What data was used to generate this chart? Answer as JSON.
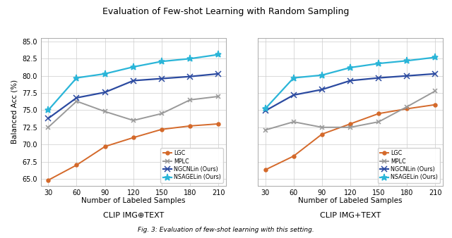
{
  "title": "Evaluation of Few-shot Learning with Random Sampling",
  "x": [
    30,
    60,
    90,
    120,
    150,
    180,
    210
  ],
  "subplot1": {
    "xlabel": "Number of Labeled Samples\nCLIP IMG⊕TEXT",
    "LGC": [
      64.8,
      67.0,
      69.7,
      71.0,
      72.2,
      72.7,
      73.0
    ],
    "MPLC": [
      72.5,
      76.3,
      74.8,
      73.5,
      74.5,
      76.5,
      77.0
    ],
    "NGCNLin": [
      73.8,
      76.8,
      77.6,
      79.3,
      79.6,
      79.9,
      80.3
    ],
    "NSAGELin": [
      75.0,
      79.7,
      80.3,
      81.3,
      82.1,
      82.5,
      83.1
    ]
  },
  "subplot2": {
    "xlabel": "Number of Labeled Samples\nCLIP IMG+TEXT",
    "LGC": [
      66.3,
      68.3,
      71.5,
      73.0,
      74.5,
      75.2,
      75.8
    ],
    "MPLC": [
      72.1,
      73.3,
      72.5,
      72.5,
      73.3,
      75.5,
      77.8
    ],
    "NGCNLin": [
      74.9,
      77.2,
      78.0,
      79.3,
      79.7,
      80.0,
      80.3
    ],
    "NSAGELin": [
      75.2,
      79.7,
      80.1,
      81.2,
      81.8,
      82.2,
      82.7
    ]
  },
  "ylabel": "Balanced Acc (%)",
  "ylim": [
    64.0,
    85.5
  ],
  "yticks": [
    65.0,
    67.5,
    70.0,
    72.5,
    75.0,
    77.5,
    80.0,
    82.5,
    85.0
  ],
  "colors": {
    "LGC": "#d4692a",
    "MPLC": "#999999",
    "NGCNLin": "#2b4aa0",
    "NSAGELin": "#2ab5d8"
  },
  "legend_labels": [
    "LGC",
    "MPLC",
    "NGCNLin (Ours)",
    "NSAGELin (Ours)"
  ],
  "legend_keys": [
    "LGC",
    "MPLC",
    "NGCNLin",
    "NSAGELin"
  ],
  "caption": "Fig. 3: Evaluation of few-shot learning with this setting."
}
